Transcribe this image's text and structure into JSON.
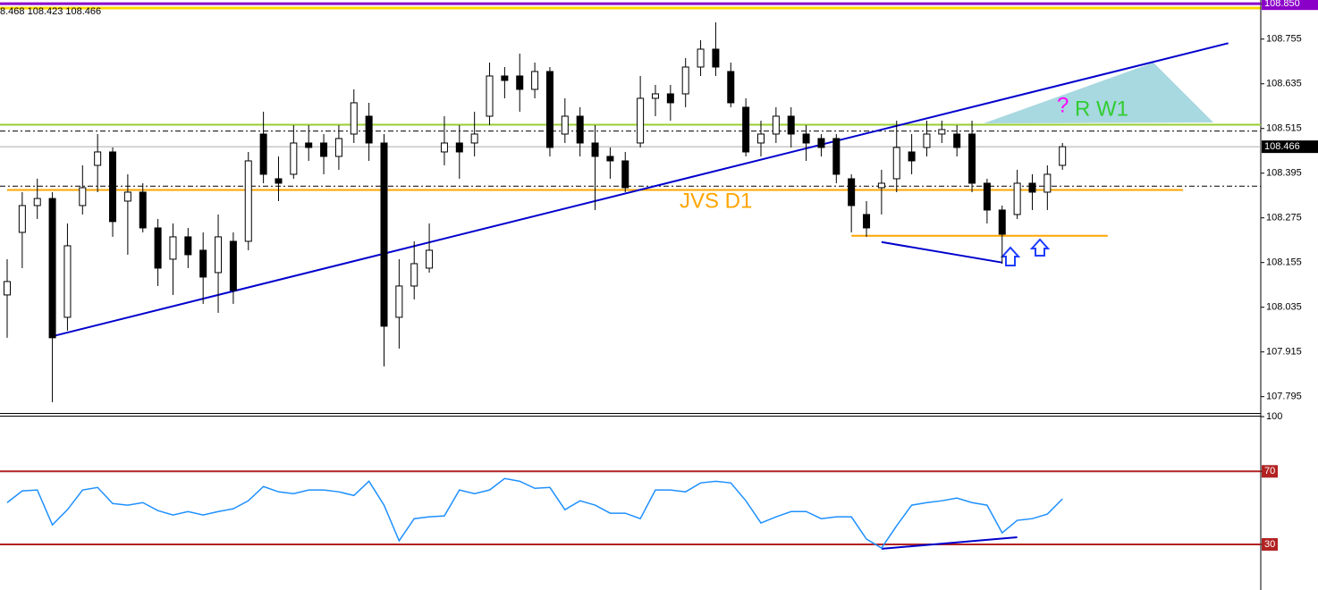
{
  "chart_data": [
    {
      "type": "candlestick",
      "header": "8.468 108.423 108.466",
      "categories": [
        null,
        null,
        null,
        null,
        null,
        null,
        null,
        null,
        null,
        null,
        null,
        null,
        null,
        null,
        null,
        null,
        null,
        null,
        null,
        null,
        null,
        null,
        null,
        null,
        null,
        null,
        null,
        null,
        null,
        null,
        null,
        null,
        null,
        null,
        null,
        null,
        null,
        null,
        null,
        null,
        null,
        null,
        null,
        null,
        null,
        null,
        null,
        null,
        null,
        null,
        null,
        null,
        null,
        null,
        null,
        null,
        null,
        null,
        null,
        null,
        null,
        null,
        null,
        null,
        null,
        null,
        null,
        null,
        null,
        null,
        null
      ],
      "open": [
        108.068,
        108.236,
        108.308,
        108.327,
        108.008,
        108.308,
        108.416,
        108.452,
        108.32,
        108.344,
        108.248,
        108.164,
        108.224,
        108.188,
        108.128,
        108.212,
        108.212,
        108.5,
        108.38,
        108.392,
        108.476,
        108.476,
        108.44,
        108.5,
        108.548,
        108.476,
        108.008,
        108.092,
        108.14,
        108.452,
        108.476,
        108.476,
        108.548,
        108.656,
        108.656,
        108.62,
        108.668,
        108.5,
        108.548,
        108.476,
        108.44,
        108.428,
        108.476,
        108.596,
        108.608,
        108.608,
        108.68,
        108.728,
        108.668,
        108.572,
        108.476,
        108.5,
        108.548,
        108.5,
        108.488,
        108.488,
        108.38,
        108.284,
        108.356,
        108.38,
        108.452,
        108.464,
        108.5,
        108.5,
        108.5,
        108.368,
        108.296,
        108.284,
        108.368,
        108.344,
        108.416
      ],
      "high": [
        108.164,
        108.344,
        108.38,
        108.344,
        108.26,
        108.416,
        108.5,
        108.464,
        108.392,
        108.368,
        108.272,
        108.26,
        108.248,
        108.236,
        108.284,
        108.236,
        108.452,
        108.56,
        108.44,
        108.524,
        108.524,
        108.5,
        108.524,
        108.62,
        108.584,
        108.5,
        108.164,
        108.212,
        108.26,
        108.548,
        108.524,
        108.56,
        108.692,
        108.68,
        108.716,
        108.692,
        108.68,
        108.596,
        108.572,
        108.524,
        108.464,
        108.452,
        108.656,
        108.632,
        108.632,
        108.704,
        108.752,
        108.8,
        108.692,
        108.596,
        108.536,
        108.572,
        108.572,
        108.524,
        108.5,
        108.5,
        108.392,
        108.32,
        108.404,
        108.536,
        108.5,
        108.536,
        108.536,
        108.524,
        108.536,
        108.38,
        108.308,
        108.404,
        108.392,
        108.416,
        108.476
      ],
      "low": [
        107.953,
        108.14,
        108.272,
        107.78,
        107.972,
        108.284,
        108.344,
        108.224,
        108.176,
        108.236,
        108.092,
        108.068,
        108.14,
        108.044,
        108.02,
        108.044,
        108.188,
        108.368,
        108.32,
        108.38,
        108.428,
        108.392,
        108.404,
        108.476,
        108.428,
        107.876,
        107.924,
        108.056,
        108.128,
        108.416,
        108.38,
        108.44,
        108.524,
        108.596,
        108.56,
        108.596,
        108.44,
        108.476,
        108.44,
        108.296,
        108.38,
        108.344,
        108.464,
        108.548,
        108.536,
        108.572,
        108.656,
        108.656,
        108.572,
        108.44,
        108.44,
        108.476,
        108.464,
        108.428,
        108.44,
        108.368,
        108.236,
        108.224,
        108.284,
        108.344,
        108.392,
        108.44,
        108.476,
        108.44,
        108.344,
        108.26,
        108.152,
        108.272,
        108.296,
        108.296,
        108.404
      ],
      "close": [
        108.104,
        108.308,
        108.327,
        107.953,
        108.2,
        108.356,
        108.452,
        108.265,
        108.344,
        108.248,
        108.14,
        108.224,
        108.176,
        108.116,
        108.224,
        108.08,
        108.428,
        108.392,
        108.368,
        108.476,
        108.464,
        108.44,
        108.488,
        108.584,
        108.476,
        107.984,
        108.092,
        108.152,
        108.188,
        108.476,
        108.452,
        108.5,
        108.656,
        108.644,
        108.62,
        108.668,
        108.464,
        108.548,
        108.476,
        108.44,
        108.428,
        108.356,
        108.596,
        108.608,
        108.584,
        108.68,
        108.728,
        108.68,
        108.584,
        108.452,
        108.5,
        108.548,
        108.5,
        108.476,
        108.464,
        108.392,
        108.308,
        108.248,
        108.368,
        108.464,
        108.428,
        108.5,
        108.512,
        108.464,
        108.368,
        108.296,
        108.231,
        108.368,
        108.344,
        108.392,
        108.466
      ],
      "ylim": [
        107.751,
        108.86
      ],
      "yticks": [
        {
          "value": 108.85,
          "label": "108.850"
        },
        108.755,
        108.635,
        108.515,
        108.395,
        108.275,
        108.155,
        108.035,
        107.915,
        107.795
      ],
      "last_price": 108.466,
      "bull_color": "#ffffff",
      "bear_color": "#000000",
      "levels": [
        {
          "value": 108.85,
          "color": "#8b00c8"
        },
        {
          "value": 108.525,
          "color": "#9acd32"
        },
        {
          "value": 108.508,
          "color": "#000000",
          "style": "dashdot"
        },
        {
          "value": 108.36,
          "color": "#000000",
          "style": "dashdot"
        }
      ],
      "segments": [
        {
          "x": [
            0,
            78
          ],
          "y": [
            108.35,
            108.35
          ],
          "color": "#ffa500"
        },
        {
          "x": [
            3,
            81
          ],
          "y": [
            107.957,
            108.744
          ],
          "color": "#0000cd"
        },
        {
          "x": [
            58,
            66
          ],
          "y": [
            108.21,
            108.155
          ],
          "color": "#0000cd"
        },
        {
          "x": [
            56,
            73
          ],
          "y": [
            108.227,
            108.227
          ],
          "color": "#ffa500"
        }
      ],
      "annotations": [
        {
          "text": "JVS D1",
          "color": "#ffa500"
        },
        {
          "text": "R W1",
          "color": "#32cd32"
        },
        {
          "text": "?",
          "color": "#ff00ff"
        }
      ]
    },
    {
      "type": "line",
      "series": [
        {
          "color": "#1e90ff",
          "values": [
            52.9,
            59.3,
            59.8,
            40.7,
            49.0,
            59.8,
            61.2,
            52.4,
            51.5,
            52.9,
            48.5,
            46.1,
            48.0,
            46.1,
            48.0,
            49.5,
            53.9,
            61.7,
            58.8,
            57.8,
            59.8,
            59.8,
            58.8,
            56.8,
            64.6,
            51.5,
            32.0,
            44.1,
            45.1,
            45.6,
            59.8,
            57.8,
            59.8,
            66.1,
            64.6,
            60.7,
            61.2,
            49.0,
            53.9,
            51.5,
            47.1,
            47.1,
            44.1,
            59.8,
            59.8,
            58.8,
            63.7,
            64.6,
            63.7,
            53.9,
            41.7,
            45.1,
            48.0,
            48.0,
            44.1,
            45.1,
            45.1,
            32.9,
            28.0,
            40.2,
            51.5,
            52.9,
            53.9,
            55.4,
            52.9,
            51.5,
            36.3,
            43.2,
            44.1,
            46.6,
            54.9
          ]
        }
      ],
      "ylim": [
        6,
        101
      ],
      "yticks": [
        100,
        70,
        30
      ],
      "levels": [
        {
          "value": 70,
          "color": "#b22222"
        },
        {
          "value": 30,
          "color": "#b22222"
        }
      ],
      "segments": [
        {
          "x": [
            58,
            67
          ],
          "y": [
            27.6,
            33.9
          ],
          "color": "#0000cd"
        }
      ]
    }
  ]
}
